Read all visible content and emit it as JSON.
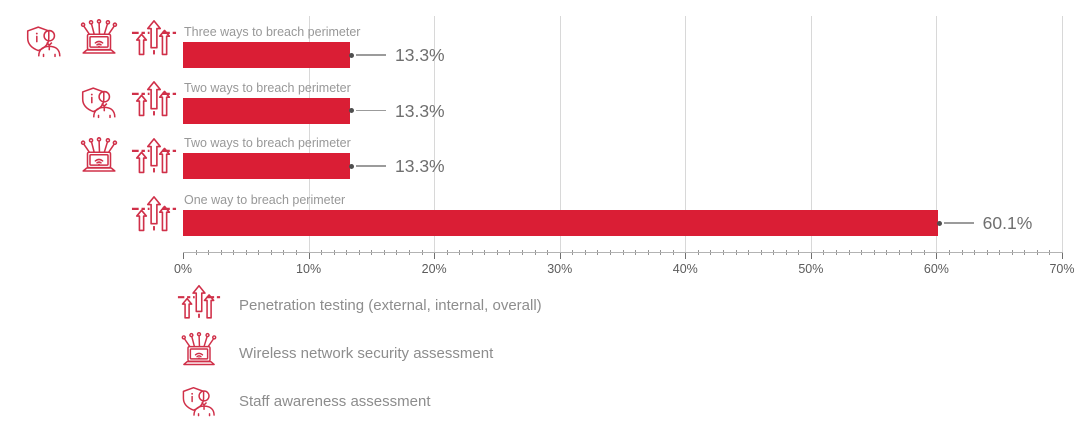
{
  "chart_data": {
    "type": "bar",
    "orientation": "horizontal",
    "categories": [
      "Three ways to breach perimeter",
      "Two ways to breach perimeter",
      "Two ways to breach perimeter",
      "One way to breach perimeter"
    ],
    "values": [
      13.3,
      13.3,
      13.3,
      60.1
    ],
    "value_labels": [
      "13.3%",
      "13.3%",
      "13.3%",
      "60.1%"
    ],
    "row_icons": [
      [
        "staff-awareness",
        "wireless-network",
        "penetration-testing"
      ],
      [
        "staff-awareness",
        "penetration-testing"
      ],
      [
        "wireless-network",
        "penetration-testing"
      ],
      [
        "penetration-testing"
      ]
    ],
    "x_ticks": [
      "0%",
      "10%",
      "20%",
      "30%",
      "40%",
      "50%",
      "60%",
      "70%"
    ],
    "xlim": [
      0,
      70
    ],
    "minor_tick_step_pct": 1,
    "grid": true,
    "legend_position": "bottom-left",
    "legend": [
      {
        "icon": "penetration-testing",
        "label": "Penetration testing (external, internal, overall)"
      },
      {
        "icon": "wireless-network",
        "label": "Wireless network security assessment"
      },
      {
        "icon": "staff-awareness",
        "label": "Staff awareness assessment"
      }
    ]
  },
  "colors": {
    "bar": "#da1e35",
    "icon": "#d03049",
    "grid": "#d8d8d8",
    "axis": "#b3b3b3",
    "category_text": "#989898",
    "value_text": "#6f6f6f",
    "tick_text": "#5c5c5c",
    "legend_text": "#8d8d8d"
  }
}
